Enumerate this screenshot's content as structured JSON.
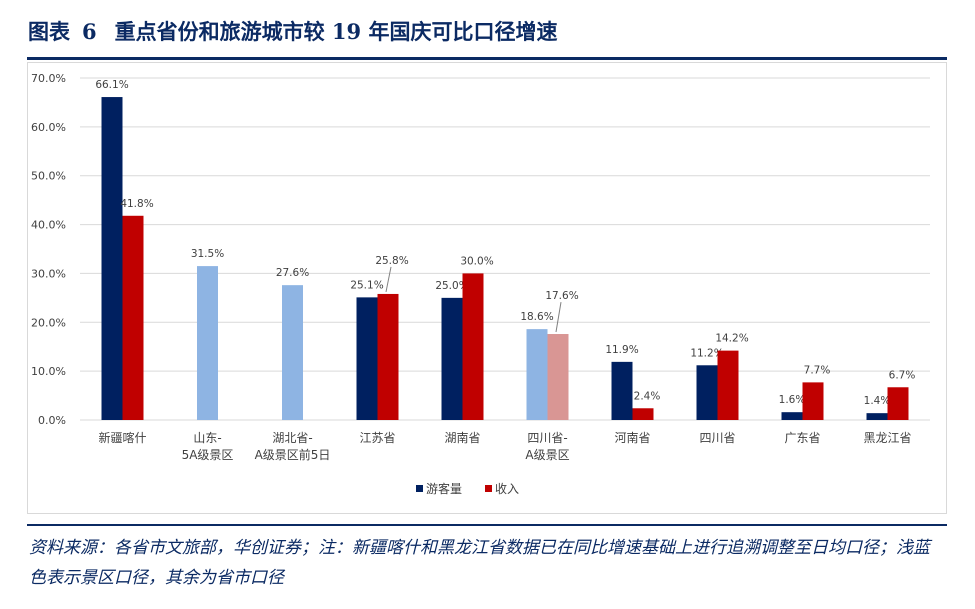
{
  "header": {
    "label": "图表",
    "number": "6",
    "text": "重点省份和旅游城市较 19 年国庆可比口径增速"
  },
  "source": "资料来源：各省市文旅部，华创证券；注：新疆喀什和黑龙江省数据已在同比增速基础上进行追溯调整至日均口径；浅蓝色表示景区口径，其余为省市口径",
  "colors": {
    "visitors": "#002060",
    "revenue": "#c00000",
    "visitors_scenic": "#8eb4e3",
    "revenue_scenic": "#d99694",
    "grid": "#d9d9d9"
  },
  "chart_data": {
    "type": "bar",
    "categories": [
      [
        "新疆喀什"
      ],
      [
        "山东-",
        "5A级景区"
      ],
      [
        "湖北省-",
        "A级景区前5日"
      ],
      [
        "江苏省"
      ],
      [
        "湖南省"
      ],
      [
        "四川省-",
        "A级景区"
      ],
      [
        "河南省"
      ],
      [
        "四川省"
      ],
      [
        "广东省"
      ],
      [
        "黑龙江省"
      ]
    ],
    "series": [
      {
        "name": "游客量",
        "values": [
          66.1,
          31.5,
          27.6,
          25.1,
          25.0,
          18.6,
          11.9,
          11.2,
          1.6,
          1.4
        ],
        "labels": [
          "66.1%",
          "31.5%",
          "27.6%",
          "25.1%",
          "25.0%",
          "18.6%",
          "11.9%",
          "11.2%",
          "1.6%",
          "1.4%"
        ]
      },
      {
        "name": "收入",
        "values": [
          41.8,
          null,
          null,
          25.8,
          30.0,
          17.6,
          2.4,
          14.2,
          7.7,
          6.7
        ],
        "labels": [
          "41.8%",
          null,
          null,
          "25.8%",
          "30.0%",
          "17.6%",
          "2.4%",
          "14.2%",
          "7.7%",
          "6.7%"
        ]
      }
    ],
    "scenic_categories": [
      1,
      2,
      5
    ],
    "yticks": [
      "0.0%",
      "10.0%",
      "20.0%",
      "30.0%",
      "40.0%",
      "50.0%",
      "60.0%",
      "70.0%"
    ],
    "ylim": [
      0,
      70
    ],
    "grid": true,
    "legend": "bottom-center"
  }
}
